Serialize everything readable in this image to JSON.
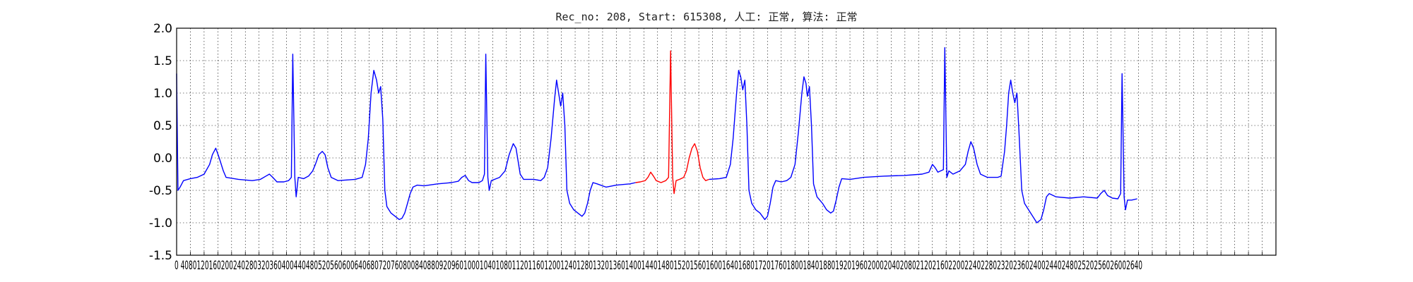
{
  "chart_data": {
    "type": "line",
    "title": "Rec_no: 208, Start: 615308, 人工: 正常, 算法: 正常",
    "xlabel": "",
    "ylabel": "",
    "xlim": [
      0,
      1600
    ],
    "ylim": [
      -1.5,
      2.0
    ],
    "y_ticks": [
      2.0,
      1.5,
      1.0,
      0.5,
      0.0,
      -0.5,
      -1.0,
      -1.5
    ],
    "y_tick_labels": [
      "2.0",
      "1.5",
      "1.0",
      "0.5",
      "0.0",
      "-0.5",
      "-1.0",
      "-1.5"
    ],
    "x_ticks": [
      0,
      20,
      40,
      60,
      80,
      100,
      120,
      140,
      160,
      180,
      200,
      220,
      240,
      260,
      280,
      300,
      320,
      340,
      360,
      380,
      400,
      420,
      440,
      460,
      480,
      500,
      520,
      540,
      560,
      580,
      600,
      620,
      640,
      660,
      680,
      700,
      720,
      740,
      760,
      780,
      800,
      820,
      840,
      860,
      880,
      900,
      920,
      940,
      960,
      980,
      1000,
      1020,
      1040,
      1060,
      1080,
      1100,
      1120,
      1140,
      1160,
      1180,
      1200,
      1220,
      1240,
      1260,
      1280,
      1300,
      1320,
      1340,
      1360,
      1380,
      1400,
      1420,
      1440,
      1460,
      1480,
      1500,
      1520,
      1540,
      1560,
      1580,
      1600
    ],
    "x_tick_labels_text": "0 4080120160200240280320360400440480520560600640680720760800840880920960100010401080112011601200124012801320136014001440148015201560160016401680172017601800184018801920196020002040208021202160220022402280232023602400244024802520256026002640",
    "grid": true,
    "series": [
      {
        "color": "#0000ff",
        "points": [
          [
            0,
            1.3
          ],
          [
            2,
            -0.5
          ],
          [
            5,
            -0.45
          ],
          [
            10,
            -0.35
          ],
          [
            20,
            -0.32
          ],
          [
            30,
            -0.3
          ],
          [
            40,
            -0.25
          ],
          [
            48,
            -0.1
          ],
          [
            52,
            0.05
          ],
          [
            57,
            0.15
          ],
          [
            62,
            0.0
          ],
          [
            68,
            -0.2
          ],
          [
            72,
            -0.3
          ],
          [
            90,
            -0.33
          ],
          [
            110,
            -0.35
          ],
          [
            122,
            -0.33
          ],
          [
            130,
            -0.28
          ],
          [
            135,
            -0.25
          ],
          [
            140,
            -0.3
          ],
          [
            146,
            -0.37
          ],
          [
            156,
            -0.37
          ],
          [
            163,
            -0.35
          ],
          [
            167,
            -0.3
          ],
          [
            169,
            1.6
          ],
          [
            172,
            -0.3
          ],
          [
            174,
            -0.6
          ],
          [
            177,
            -0.3
          ],
          [
            185,
            -0.32
          ],
          [
            192,
            -0.28
          ],
          [
            198,
            -0.2
          ],
          [
            202,
            -0.1
          ],
          [
            207,
            0.05
          ],
          [
            212,
            0.1
          ],
          [
            216,
            0.05
          ],
          [
            220,
            -0.15
          ],
          [
            225,
            -0.3
          ],
          [
            235,
            -0.35
          ],
          [
            260,
            -0.33
          ],
          [
            270,
            -0.3
          ],
          [
            275,
            -0.1
          ],
          [
            279,
            0.3
          ],
          [
            283,
            1.0
          ],
          [
            287,
            1.35
          ],
          [
            291,
            1.2
          ],
          [
            294,
            1.0
          ],
          [
            297,
            1.1
          ],
          [
            300,
            0.6
          ],
          [
            303,
            -0.5
          ],
          [
            306,
            -0.75
          ],
          [
            312,
            -0.85
          ],
          [
            318,
            -0.9
          ],
          [
            324,
            -0.95
          ],
          [
            328,
            -0.93
          ],
          [
            332,
            -0.85
          ],
          [
            336,
            -0.7
          ],
          [
            340,
            -0.55
          ],
          [
            344,
            -0.45
          ],
          [
            350,
            -0.42
          ],
          [
            360,
            -0.43
          ],
          [
            380,
            -0.4
          ],
          [
            400,
            -0.38
          ],
          [
            410,
            -0.36
          ],
          [
            415,
            -0.3
          ],
          [
            420,
            -0.27
          ],
          [
            425,
            -0.35
          ],
          [
            430,
            -0.38
          ],
          [
            440,
            -0.38
          ],
          [
            445,
            -0.35
          ],
          [
            448,
            -0.25
          ],
          [
            450,
            1.6
          ],
          [
            453,
            -0.3
          ],
          [
            455,
            -0.5
          ],
          [
            458,
            -0.35
          ],
          [
            470,
            -0.3
          ],
          [
            478,
            -0.2
          ],
          [
            484,
            0.05
          ],
          [
            490,
            0.22
          ],
          [
            494,
            0.15
          ],
          [
            500,
            -0.25
          ],
          [
            505,
            -0.33
          ],
          [
            520,
            -0.33
          ],
          [
            530,
            -0.35
          ],
          [
            535,
            -0.3
          ],
          [
            540,
            -0.15
          ],
          [
            545,
            0.3
          ],
          [
            550,
            0.9
          ],
          [
            553,
            1.2
          ],
          [
            556,
            1.0
          ],
          [
            559,
            0.8
          ],
          [
            562,
            1.0
          ],
          [
            565,
            0.5
          ],
          [
            568,
            -0.5
          ],
          [
            572,
            -0.7
          ],
          [
            578,
            -0.8
          ],
          [
            584,
            -0.85
          ],
          [
            590,
            -0.9
          ],
          [
            594,
            -0.85
          ],
          [
            598,
            -0.7
          ],
          [
            602,
            -0.5
          ],
          [
            606,
            -0.38
          ],
          [
            612,
            -0.4
          ],
          [
            625,
            -0.45
          ],
          [
            640,
            -0.42
          ],
          [
            660,
            -0.4
          ],
          [
            668,
            -0.38
          ]
        ]
      },
      {
        "color": "#ff0000",
        "points": [
          [
            668,
            -0.38
          ],
          [
            675,
            -0.37
          ],
          [
            682,
            -0.35
          ],
          [
            686,
            -0.3
          ],
          [
            690,
            -0.22
          ],
          [
            694,
            -0.28
          ],
          [
            698,
            -0.35
          ],
          [
            705,
            -0.38
          ],
          [
            712,
            -0.35
          ],
          [
            716,
            -0.3
          ],
          [
            719,
            1.65
          ],
          [
            722,
            -0.3
          ],
          [
            724,
            -0.55
          ],
          [
            727,
            -0.35
          ],
          [
            732,
            -0.33
          ],
          [
            738,
            -0.3
          ],
          [
            742,
            -0.2
          ],
          [
            746,
            0.0
          ],
          [
            750,
            0.15
          ],
          [
            754,
            0.22
          ],
          [
            758,
            0.1
          ],
          [
            762,
            -0.15
          ],
          [
            766,
            -0.3
          ],
          [
            770,
            -0.35
          ],
          [
            775,
            -0.33
          ]
        ]
      },
      {
        "color": "#0000ff",
        "points": [
          [
            775,
            -0.33
          ],
          [
            790,
            -0.32
          ],
          [
            800,
            -0.3
          ],
          [
            806,
            -0.1
          ],
          [
            810,
            0.3
          ],
          [
            815,
            1.0
          ],
          [
            818,
            1.35
          ],
          [
            821,
            1.25
          ],
          [
            824,
            1.05
          ],
          [
            827,
            1.2
          ],
          [
            830,
            0.5
          ],
          [
            833,
            -0.5
          ],
          [
            837,
            -0.7
          ],
          [
            843,
            -0.8
          ],
          [
            849,
            -0.85
          ],
          [
            856,
            -0.95
          ],
          [
            860,
            -0.9
          ],
          [
            864,
            -0.7
          ],
          [
            868,
            -0.45
          ],
          [
            872,
            -0.35
          ],
          [
            880,
            -0.37
          ],
          [
            888,
            -0.35
          ],
          [
            894,
            -0.3
          ],
          [
            900,
            -0.1
          ],
          [
            905,
            0.4
          ],
          [
            910,
            1.0
          ],
          [
            913,
            1.25
          ],
          [
            916,
            1.15
          ],
          [
            918,
            0.95
          ],
          [
            921,
            1.1
          ],
          [
            924,
            0.5
          ],
          [
            927,
            -0.4
          ],
          [
            932,
            -0.6
          ],
          [
            940,
            -0.7
          ],
          [
            946,
            -0.8
          ],
          [
            952,
            -0.85
          ],
          [
            956,
            -0.82
          ],
          [
            960,
            -0.65
          ],
          [
            964,
            -0.45
          ],
          [
            968,
            -0.32
          ],
          [
            980,
            -0.33
          ],
          [
            1000,
            -0.3
          ],
          [
            1030,
            -0.28
          ],
          [
            1060,
            -0.27
          ],
          [
            1085,
            -0.25
          ],
          [
            1095,
            -0.22
          ],
          [
            1100,
            -0.1
          ],
          [
            1104,
            -0.15
          ],
          [
            1108,
            -0.22
          ],
          [
            1112,
            -0.2
          ],
          [
            1116,
            -0.18
          ],
          [
            1118,
            1.7
          ],
          [
            1121,
            -0.3
          ],
          [
            1124,
            -0.2
          ],
          [
            1130,
            -0.25
          ],
          [
            1140,
            -0.2
          ],
          [
            1148,
            -0.1
          ],
          [
            1152,
            0.1
          ],
          [
            1156,
            0.25
          ],
          [
            1160,
            0.15
          ],
          [
            1165,
            -0.1
          ],
          [
            1170,
            -0.25
          ],
          [
            1180,
            -0.3
          ],
          [
            1195,
            -0.3
          ],
          [
            1200,
            -0.28
          ],
          [
            1205,
            0.1
          ],
          [
            1208,
            0.5
          ],
          [
            1211,
            1.0
          ],
          [
            1214,
            1.2
          ],
          [
            1217,
            1.0
          ],
          [
            1220,
            0.85
          ],
          [
            1223,
            1.0
          ],
          [
            1226,
            0.4
          ],
          [
            1230,
            -0.5
          ],
          [
            1234,
            -0.7
          ],
          [
            1240,
            -0.8
          ],
          [
            1246,
            -0.9
          ],
          [
            1252,
            -1.0
          ],
          [
            1258,
            -0.95
          ],
          [
            1262,
            -0.8
          ],
          [
            1266,
            -0.6
          ],
          [
            1270,
            -0.55
          ],
          [
            1280,
            -0.6
          ],
          [
            1300,
            -0.62
          ],
          [
            1320,
            -0.6
          ],
          [
            1340,
            -0.62
          ],
          [
            1345,
            -0.55
          ],
          [
            1350,
            -0.5
          ],
          [
            1355,
            -0.58
          ],
          [
            1362,
            -0.62
          ],
          [
            1370,
            -0.63
          ],
          [
            1374,
            -0.55
          ],
          [
            1376,
            1.3
          ],
          [
            1379,
            -0.6
          ],
          [
            1381,
            -0.8
          ],
          [
            1384,
            -0.65
          ],
          [
            1390,
            -0.65
          ],
          [
            1398,
            -0.63
          ]
        ]
      }
    ]
  }
}
